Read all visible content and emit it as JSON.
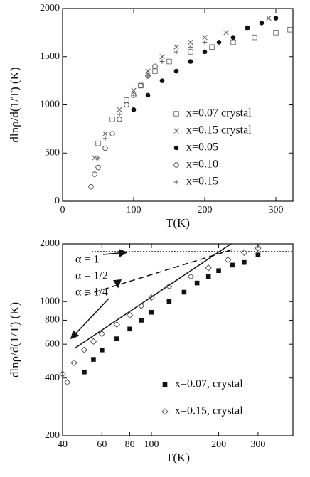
{
  "chart_data": [
    {
      "type": "scatter",
      "x_label": "T(K)",
      "y_label": "dlnρ/d(1/T) (K)",
      "xlim": [
        0,
        324
      ],
      "ylim": [
        0,
        2000
      ],
      "xticks": [
        0,
        100,
        200,
        300
      ],
      "yticks": [
        0,
        500,
        1000,
        1500,
        2000
      ],
      "series": [
        {
          "name": "x=0.07 crystal",
          "marker": "square-open",
          "color": "#777777",
          "x": [
            50,
            70,
            90,
            110,
            130,
            150,
            180,
            210,
            240,
            270,
            300,
            320
          ],
          "values": [
            600,
            850,
            1050,
            1200,
            1350,
            1450,
            1550,
            1600,
            1650,
            1700,
            1750,
            1780
          ]
        },
        {
          "name": "x=0.15 crystal",
          "marker": "cross",
          "color": "#555555",
          "x": [
            45,
            60,
            80,
            100,
            120,
            140,
            160,
            180,
            200,
            230,
            260,
            290
          ],
          "values": [
            450,
            700,
            950,
            1150,
            1350,
            1500,
            1600,
            1650,
            1700,
            1750,
            1800,
            1900
          ]
        },
        {
          "name": "x=0.05",
          "marker": "circle-filled",
          "color": "#111111",
          "x": [
            100,
            120,
            140,
            160,
            180,
            200,
            220,
            240,
            260,
            280,
            300
          ],
          "values": [
            950,
            1100,
            1250,
            1350,
            1450,
            1550,
            1650,
            1700,
            1800,
            1850,
            1900
          ]
        },
        {
          "name": "x=0.10",
          "marker": "circle-open",
          "color": "#555555",
          "x": [
            40,
            45,
            50,
            60,
            70,
            80,
            90,
            100,
            110,
            120,
            130
          ],
          "values": [
            150,
            280,
            350,
            550,
            700,
            850,
            1000,
            1100,
            1200,
            1300,
            1400
          ]
        },
        {
          "name": "x=0.15",
          "marker": "plus",
          "color": "#555555",
          "x": [
            50,
            60,
            80,
            100,
            120,
            140,
            160,
            180,
            200
          ],
          "values": [
            450,
            650,
            900,
            1100,
            1300,
            1450,
            1550,
            1600,
            1650
          ]
        }
      ]
    },
    {
      "type": "scatter",
      "x_label": "T(K)",
      "y_label": "dlnρ/d(1/T) (K)",
      "xscale": "log",
      "yscale": "log",
      "xlim": [
        40,
        430
      ],
      "ylim": [
        200,
        2000
      ],
      "xticks": [
        40,
        60,
        80,
        100,
        200,
        300
      ],
      "yticks": [
        200,
        400,
        600,
        800,
        1000,
        2000
      ],
      "series": [
        {
          "name": "x=0.07, crystal",
          "marker": "square-filled",
          "color": "#111111",
          "x": [
            50,
            55,
            60,
            70,
            80,
            90,
            100,
            120,
            140,
            160,
            180,
            200,
            230,
            260,
            300
          ],
          "values": [
            430,
            500,
            560,
            640,
            720,
            800,
            880,
            1000,
            1120,
            1250,
            1350,
            1450,
            1550,
            1600,
            1750
          ]
        },
        {
          "name": "x=0.15, crystal",
          "marker": "diamond-open",
          "color": "#555555",
          "x": [
            40,
            42,
            45,
            50,
            55,
            60,
            70,
            80,
            90,
            100,
            120,
            150,
            180,
            220,
            260,
            300
          ],
          "values": [
            420,
            380,
            480,
            560,
            620,
            680,
            760,
            850,
            950,
            1050,
            1200,
            1350,
            1500,
            1650,
            1800,
            1900
          ]
        }
      ],
      "lines": [
        {
          "style": "dotted",
          "x": [
            54,
            430
          ],
          "y": [
            1820,
            1820
          ]
        },
        {
          "style": "dashed",
          "x": [
            50.6,
            236
          ],
          "y": [
            1082,
            1884
          ]
        },
        {
          "style": "solid",
          "x": [
            45.3,
            227
          ],
          "y": [
            571,
            2000
          ]
        }
      ],
      "annotations": [
        "α = 1",
        "α = 1/2",
        "α = 1/4"
      ]
    }
  ]
}
